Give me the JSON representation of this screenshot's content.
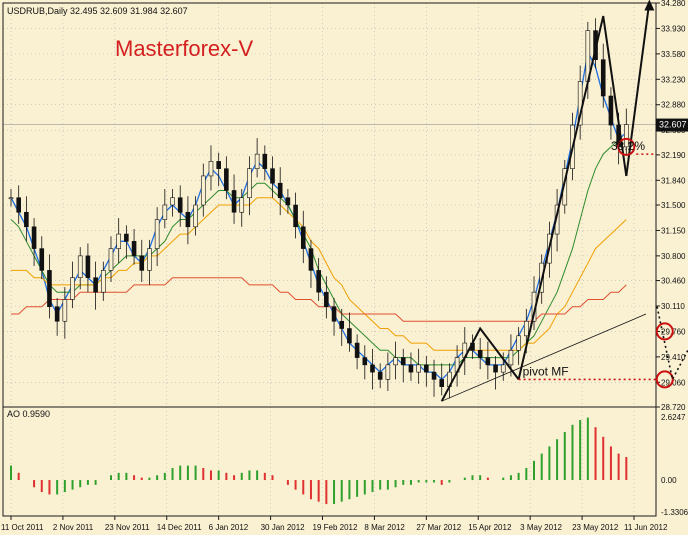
{
  "header": {
    "symbol_line": "USDRUB,Daily  32.495 32.609 31.984 32.607",
    "brand": "Masterforex-V"
  },
  "colors": {
    "background": "#FAF0D2",
    "frame": "#1A1A1A",
    "grid": "#B4B4B4",
    "candle": "#111111",
    "ma_fast": "#1E6FE0",
    "ma_green": "#2E8B2E",
    "ma_orange": "#F0A000",
    "ma_red": "#E05030",
    "ao_up": "#2EA02E",
    "ao_down": "#E03030",
    "annotation": "#111111",
    "circle": "#CC1010",
    "brand": "#D42020",
    "dotted_red": "#CC1010"
  },
  "chart_data": [
    {
      "type": "candlestick",
      "symbol": "USDRUB",
      "timeframe": "Daily",
      "title": "USDRUB,Daily",
      "ohlc_last": {
        "open": 32.495,
        "high": 32.609,
        "low": 31.984,
        "close": 32.607
      },
      "y_ticks": [
        "34.280",
        "33.930",
        "33.580",
        "33.230",
        "32.880",
        "32.530",
        "32.190",
        "31.840",
        "31.500",
        "31.150",
        "30.800",
        "30.460",
        "30.110",
        "29.760",
        "29.410",
        "29.060",
        "28.720"
      ],
      "ylim": [
        28.72,
        34.28
      ],
      "current_price_label": "32.607",
      "x_ticks": [
        "11 Oct 2011",
        "2 Nov 2011",
        "23 Nov 2011",
        "14 Dec 2011",
        "6 Jan 2012",
        "30 Jan 2012",
        "19 Feb 2012",
        "8 Mar 2012",
        "27 Mar 2012",
        "15 Apr 2012",
        "3 May 2012",
        "23 May 2012",
        "11 Jun 2012"
      ],
      "close_series": [
        31.6,
        31.4,
        31.2,
        30.9,
        30.6,
        30.1,
        29.9,
        30.2,
        30.5,
        30.8,
        30.5,
        30.3,
        30.6,
        30.9,
        31.1,
        31.0,
        30.8,
        30.6,
        30.9,
        31.3,
        31.5,
        31.6,
        31.4,
        31.2,
        31.5,
        31.9,
        32.1,
        32.0,
        31.7,
        31.4,
        31.6,
        32.0,
        32.2,
        32.0,
        31.8,
        31.6,
        31.5,
        31.2,
        30.9,
        30.6,
        30.3,
        30.1,
        29.9,
        29.8,
        29.6,
        29.4,
        29.3,
        29.2,
        29.1,
        29.3,
        29.4,
        29.3,
        29.2,
        29.3,
        29.2,
        29.1,
        29.0,
        29.2,
        29.4,
        29.6,
        29.5,
        29.4,
        29.3,
        29.2,
        29.3,
        29.5,
        29.7,
        29.9,
        30.3,
        30.7,
        31.1,
        31.5,
        32.0,
        32.6,
        33.2,
        33.9,
        33.5,
        33.0,
        32.6,
        32.3,
        32.607
      ],
      "moving_averages": [
        {
          "name": "",
          "color": "#1E6FE0",
          "values": [
            31.6,
            31.4,
            31.2,
            30.9,
            30.6,
            30.2,
            30.0,
            30.2,
            30.4,
            30.6,
            30.5,
            30.4,
            30.6,
            30.8,
            31.0,
            31.0,
            30.8,
            30.7,
            30.9,
            31.2,
            31.4,
            31.5,
            31.4,
            31.3,
            31.5,
            31.8,
            32.0,
            31.9,
            31.7,
            31.5,
            31.6,
            31.9,
            32.1,
            32.0,
            31.8,
            31.7,
            31.5,
            31.3,
            31.0,
            30.7,
            30.4,
            30.2,
            30.0,
            29.8,
            29.6,
            29.5,
            29.4,
            29.3,
            29.2,
            29.3,
            29.4,
            29.3,
            29.3,
            29.3,
            29.2,
            29.2,
            29.1,
            29.2,
            29.4,
            29.5,
            29.5,
            29.4,
            29.3,
            29.3,
            29.3,
            29.5,
            29.7,
            29.9,
            30.2,
            30.6,
            31.0,
            31.4,
            31.9,
            32.4,
            33.0,
            33.6,
            33.4,
            33.0,
            32.7,
            32.4,
            32.5
          ]
        },
        {
          "name": "",
          "color": "#2E8B2E",
          "values": [
            31.3,
            31.2,
            31.0,
            30.8,
            30.6,
            30.4,
            30.3,
            30.3,
            30.3,
            30.4,
            30.4,
            30.4,
            30.5,
            30.6,
            30.7,
            30.8,
            30.8,
            30.8,
            30.8,
            30.9,
            31.0,
            31.2,
            31.3,
            31.3,
            31.4,
            31.5,
            31.6,
            31.7,
            31.7,
            31.6,
            31.6,
            31.7,
            31.8,
            31.8,
            31.7,
            31.6,
            31.5,
            31.3,
            31.1,
            30.9,
            30.6,
            30.4,
            30.2,
            30.0,
            29.9,
            29.8,
            29.7,
            29.6,
            29.5,
            29.5,
            29.4,
            29.4,
            29.4,
            29.3,
            29.3,
            29.3,
            29.3,
            29.3,
            29.3,
            29.4,
            29.4,
            29.4,
            29.4,
            29.4,
            29.4,
            29.4,
            29.5,
            29.6,
            29.7,
            29.9,
            30.1,
            30.3,
            30.6,
            30.9,
            31.3,
            31.7,
            32.0,
            32.2,
            32.3,
            32.4,
            32.4
          ]
        },
        {
          "name": "",
          "color": "#F0A000",
          "values": [
            30.6,
            30.6,
            30.6,
            30.5,
            30.5,
            30.4,
            30.4,
            30.4,
            30.4,
            30.4,
            30.4,
            30.4,
            30.5,
            30.5,
            30.6,
            30.6,
            30.7,
            30.7,
            30.8,
            30.8,
            30.9,
            31.0,
            31.1,
            31.1,
            31.2,
            31.3,
            31.4,
            31.5,
            31.5,
            31.5,
            31.5,
            31.5,
            31.6,
            31.6,
            31.6,
            31.5,
            31.4,
            31.3,
            31.2,
            31.0,
            30.9,
            30.7,
            30.5,
            30.4,
            30.2,
            30.1,
            30.0,
            29.9,
            29.8,
            29.8,
            29.7,
            29.7,
            29.6,
            29.6,
            29.6,
            29.5,
            29.5,
            29.5,
            29.5,
            29.5,
            29.5,
            29.5,
            29.5,
            29.5,
            29.5,
            29.5,
            29.5,
            29.6,
            29.6,
            29.7,
            29.8,
            30.0,
            30.1,
            30.3,
            30.5,
            30.7,
            30.9,
            31.0,
            31.1,
            31.2,
            31.3
          ]
        },
        {
          "name": "",
          "color": "#E05030",
          "values": [
            30.0,
            30.0,
            30.1,
            30.1,
            30.1,
            30.2,
            30.2,
            30.2,
            30.2,
            30.3,
            30.3,
            30.3,
            30.3,
            30.3,
            30.3,
            30.3,
            30.4,
            30.4,
            30.4,
            30.4,
            30.4,
            30.5,
            30.5,
            30.5,
            30.5,
            30.5,
            30.5,
            30.5,
            30.5,
            30.5,
            30.5,
            30.4,
            30.4,
            30.4,
            30.4,
            30.3,
            30.3,
            30.2,
            30.2,
            30.2,
            30.1,
            30.1,
            30.1,
            30.0,
            30.0,
            30.0,
            30.0,
            30.0,
            30.0,
            30.0,
            30.0,
            29.9,
            29.9,
            29.9,
            29.9,
            29.9,
            29.9,
            29.9,
            29.9,
            29.9,
            29.9,
            29.9,
            29.9,
            29.9,
            29.9,
            29.9,
            29.9,
            29.9,
            29.9,
            30.0,
            30.0,
            30.0,
            30.0,
            30.1,
            30.1,
            30.2,
            30.2,
            30.2,
            30.3,
            30.3,
            30.4
          ]
        }
      ],
      "annotations": {
        "fib_label": "38.2%",
        "pivot_label": "pivot MF"
      }
    },
    {
      "type": "bar",
      "title": "AO 0.9590",
      "indicator": "AO",
      "y_ticks": [
        "2.6247",
        "0.00",
        "-1.3306"
      ],
      "ylim": [
        -1.3306,
        2.6247
      ],
      "values": [
        0.6,
        0.3,
        0.0,
        -0.3,
        -0.5,
        -0.6,
        -0.6,
        -0.5,
        -0.4,
        -0.3,
        -0.2,
        -0.2,
        0.0,
        0.2,
        0.3,
        0.3,
        0.2,
        0.1,
        0.1,
        0.2,
        0.3,
        0.5,
        0.6,
        0.6,
        0.6,
        0.5,
        0.4,
        0.4,
        0.3,
        0.2,
        0.3,
        0.4,
        0.4,
        0.3,
        0.2,
        0.0,
        -0.2,
        -0.4,
        -0.6,
        -0.8,
        -0.9,
        -1.0,
        -1.0,
        -0.9,
        -0.8,
        -0.7,
        -0.6,
        -0.5,
        -0.4,
        -0.4,
        -0.3,
        -0.2,
        -0.2,
        -0.1,
        -0.1,
        -0.1,
        -0.2,
        -0.1,
        0.0,
        0.1,
        0.2,
        0.2,
        0.1,
        0.0,
        0.1,
        0.2,
        0.3,
        0.5,
        0.8,
        1.1,
        1.4,
        1.7,
        2.0,
        2.3,
        2.5,
        2.6,
        2.2,
        1.8,
        1.4,
        1.1,
        0.959
      ]
    }
  ]
}
